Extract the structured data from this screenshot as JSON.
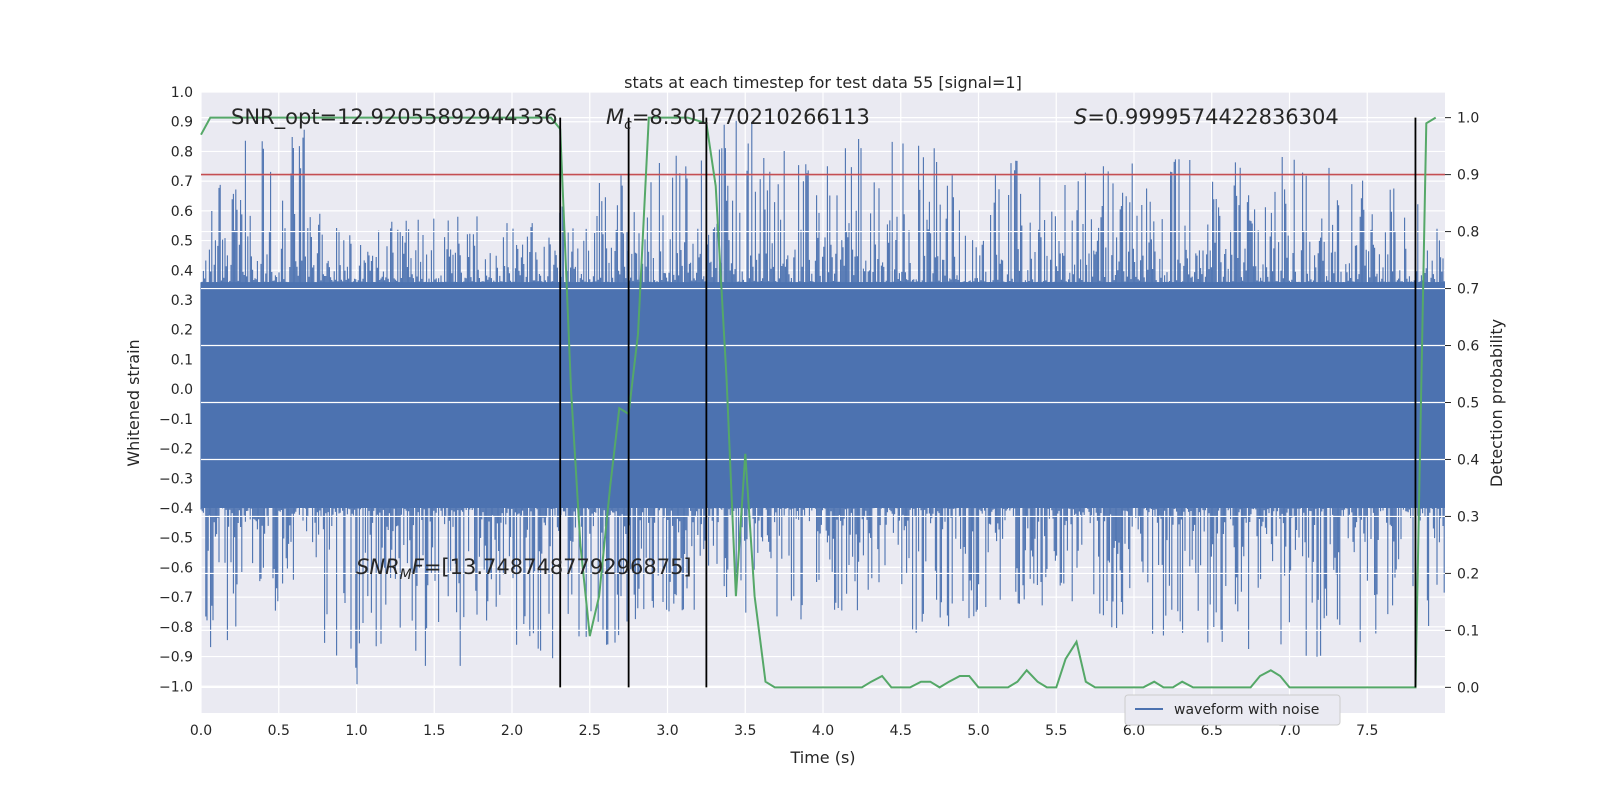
{
  "chart_data": {
    "type": "line",
    "title": "stats at each timestep for test data 55 [signal=1]",
    "xlabel": "Time (s)",
    "ylabel": "Whitened strain",
    "y2label": "Detection probability",
    "xlim": [
      0.0,
      8.0
    ],
    "ylim": [
      -1.09,
      1.0
    ],
    "y2lim": [
      -0.045,
      1.045
    ],
    "x_ticks": [
      "0.0",
      "0.5",
      "1.0",
      "1.5",
      "2.0",
      "2.5",
      "3.0",
      "3.5",
      "4.0",
      "4.5",
      "5.0",
      "5.5",
      "6.0",
      "6.5",
      "7.0",
      "7.5"
    ],
    "y_ticks": [
      "1.0",
      "0.9",
      "0.8",
      "0.7",
      "0.6",
      "0.5",
      "0.4",
      "0.3",
      "0.2",
      "0.1",
      "0.0",
      "−0.1",
      "−0.2",
      "−0.3",
      "−0.4",
      "−0.5",
      "−0.6",
      "−0.7",
      "−0.8",
      "−0.9",
      "−1.0"
    ],
    "y2_ticks": [
      "1.0",
      "0.9",
      "0.8",
      "0.7",
      "0.6",
      "0.5",
      "0.4",
      "0.3",
      "0.2",
      "0.1",
      "0.0"
    ],
    "threshold": 0.9,
    "threshold_color": "#c44e52",
    "vertical_markers": [
      2.31,
      2.75,
      3.25,
      7.81
    ],
    "annotations": {
      "snr_opt": "SNR_opt=12.92055892944336",
      "chirp_mass_symbol": "M",
      "chirp_mass_sub": "c",
      "chirp_mass_value": "=8.301770210266113",
      "s_symbol": "S",
      "s_value": "=0.9999574422836304",
      "snr_mf_symbol": "SNR",
      "snr_mf_sub": "M",
      "snr_mf_mid": "F",
      "snr_mf_value": "=[13.748748779296875]"
    },
    "series": [
      {
        "name": "waveform with noise",
        "color": "#4c72b0",
        "description_envelope": [
          {
            "x": 0.0,
            "min": -0.92,
            "max": 0.55
          },
          {
            "x": 0.25,
            "min": -0.83,
            "max": 0.83
          },
          {
            "x": 0.65,
            "min": -0.7,
            "max": 0.9
          },
          {
            "x": 0.8,
            "min": -0.96,
            "max": 0.6
          },
          {
            "x": 0.9,
            "min": -1.0,
            "max": 0.55
          },
          {
            "x": 2.15,
            "min": -0.92,
            "max": 0.6
          },
          {
            "x": 3.45,
            "min": -0.75,
            "max": 0.91
          },
          {
            "x": 4.6,
            "min": -0.82,
            "max": 0.82
          },
          {
            "x": 5.6,
            "min": -0.78,
            "max": 0.74
          },
          {
            "x": 6.8,
            "min": -0.88,
            "max": 0.8
          },
          {
            "x": 7.7,
            "min": -0.93,
            "max": 0.69
          },
          {
            "x": 7.99,
            "min": -0.78,
            "max": 0.6
          }
        ]
      },
      {
        "name": "Detection probability",
        "color": "#55a868",
        "axis": "right",
        "x": [
          0.0,
          0.06,
          0.2,
          0.5,
          1.0,
          1.5,
          2.0,
          2.25,
          2.31,
          2.38,
          2.44,
          2.5,
          2.56,
          2.63,
          2.69,
          2.75,
          2.81,
          2.88,
          3.0,
          3.13,
          3.25,
          3.31,
          3.38,
          3.44,
          3.5,
          3.56,
          3.63,
          3.69,
          3.75,
          3.88,
          4.0,
          4.25,
          4.31,
          4.38,
          4.44,
          4.5,
          4.56,
          4.63,
          4.69,
          4.75,
          4.81,
          4.88,
          4.94,
          5.0,
          5.06,
          5.13,
          5.19,
          5.25,
          5.31,
          5.38,
          5.44,
          5.5,
          5.56,
          5.63,
          5.69,
          5.75,
          5.88,
          6.0,
          6.06,
          6.13,
          6.19,
          6.25,
          6.31,
          6.38,
          6.44,
          6.5,
          6.56,
          6.63,
          6.69,
          6.75,
          6.81,
          6.88,
          6.94,
          7.0,
          7.06,
          7.5,
          7.75,
          7.81,
          7.88,
          7.94
        ],
        "y": [
          0.97,
          1.0,
          1.0,
          1.0,
          1.0,
          1.0,
          1.0,
          1.0,
          0.98,
          0.52,
          0.25,
          0.09,
          0.16,
          0.35,
          0.49,
          0.48,
          0.62,
          1.0,
          1.0,
          1.0,
          0.99,
          0.88,
          0.54,
          0.16,
          0.41,
          0.16,
          0.01,
          0.0,
          0.0,
          0.0,
          0.0,
          0.0,
          0.01,
          0.02,
          0.0,
          0.0,
          0.0,
          0.01,
          0.01,
          0.0,
          0.01,
          0.02,
          0.02,
          0.0,
          0.0,
          0.0,
          0.0,
          0.01,
          0.03,
          0.01,
          0.0,
          0.0,
          0.05,
          0.08,
          0.01,
          0.0,
          0.0,
          0.0,
          0.0,
          0.01,
          0.0,
          0.0,
          0.01,
          0.0,
          0.0,
          0.0,
          0.0,
          0.0,
          0.0,
          0.0,
          0.02,
          0.03,
          0.02,
          0.0,
          0.0,
          0.0,
          0.0,
          0.0,
          0.99,
          1.0
        ]
      }
    ],
    "legend": {
      "label": "waveform with noise",
      "placement": "lower-right"
    }
  }
}
